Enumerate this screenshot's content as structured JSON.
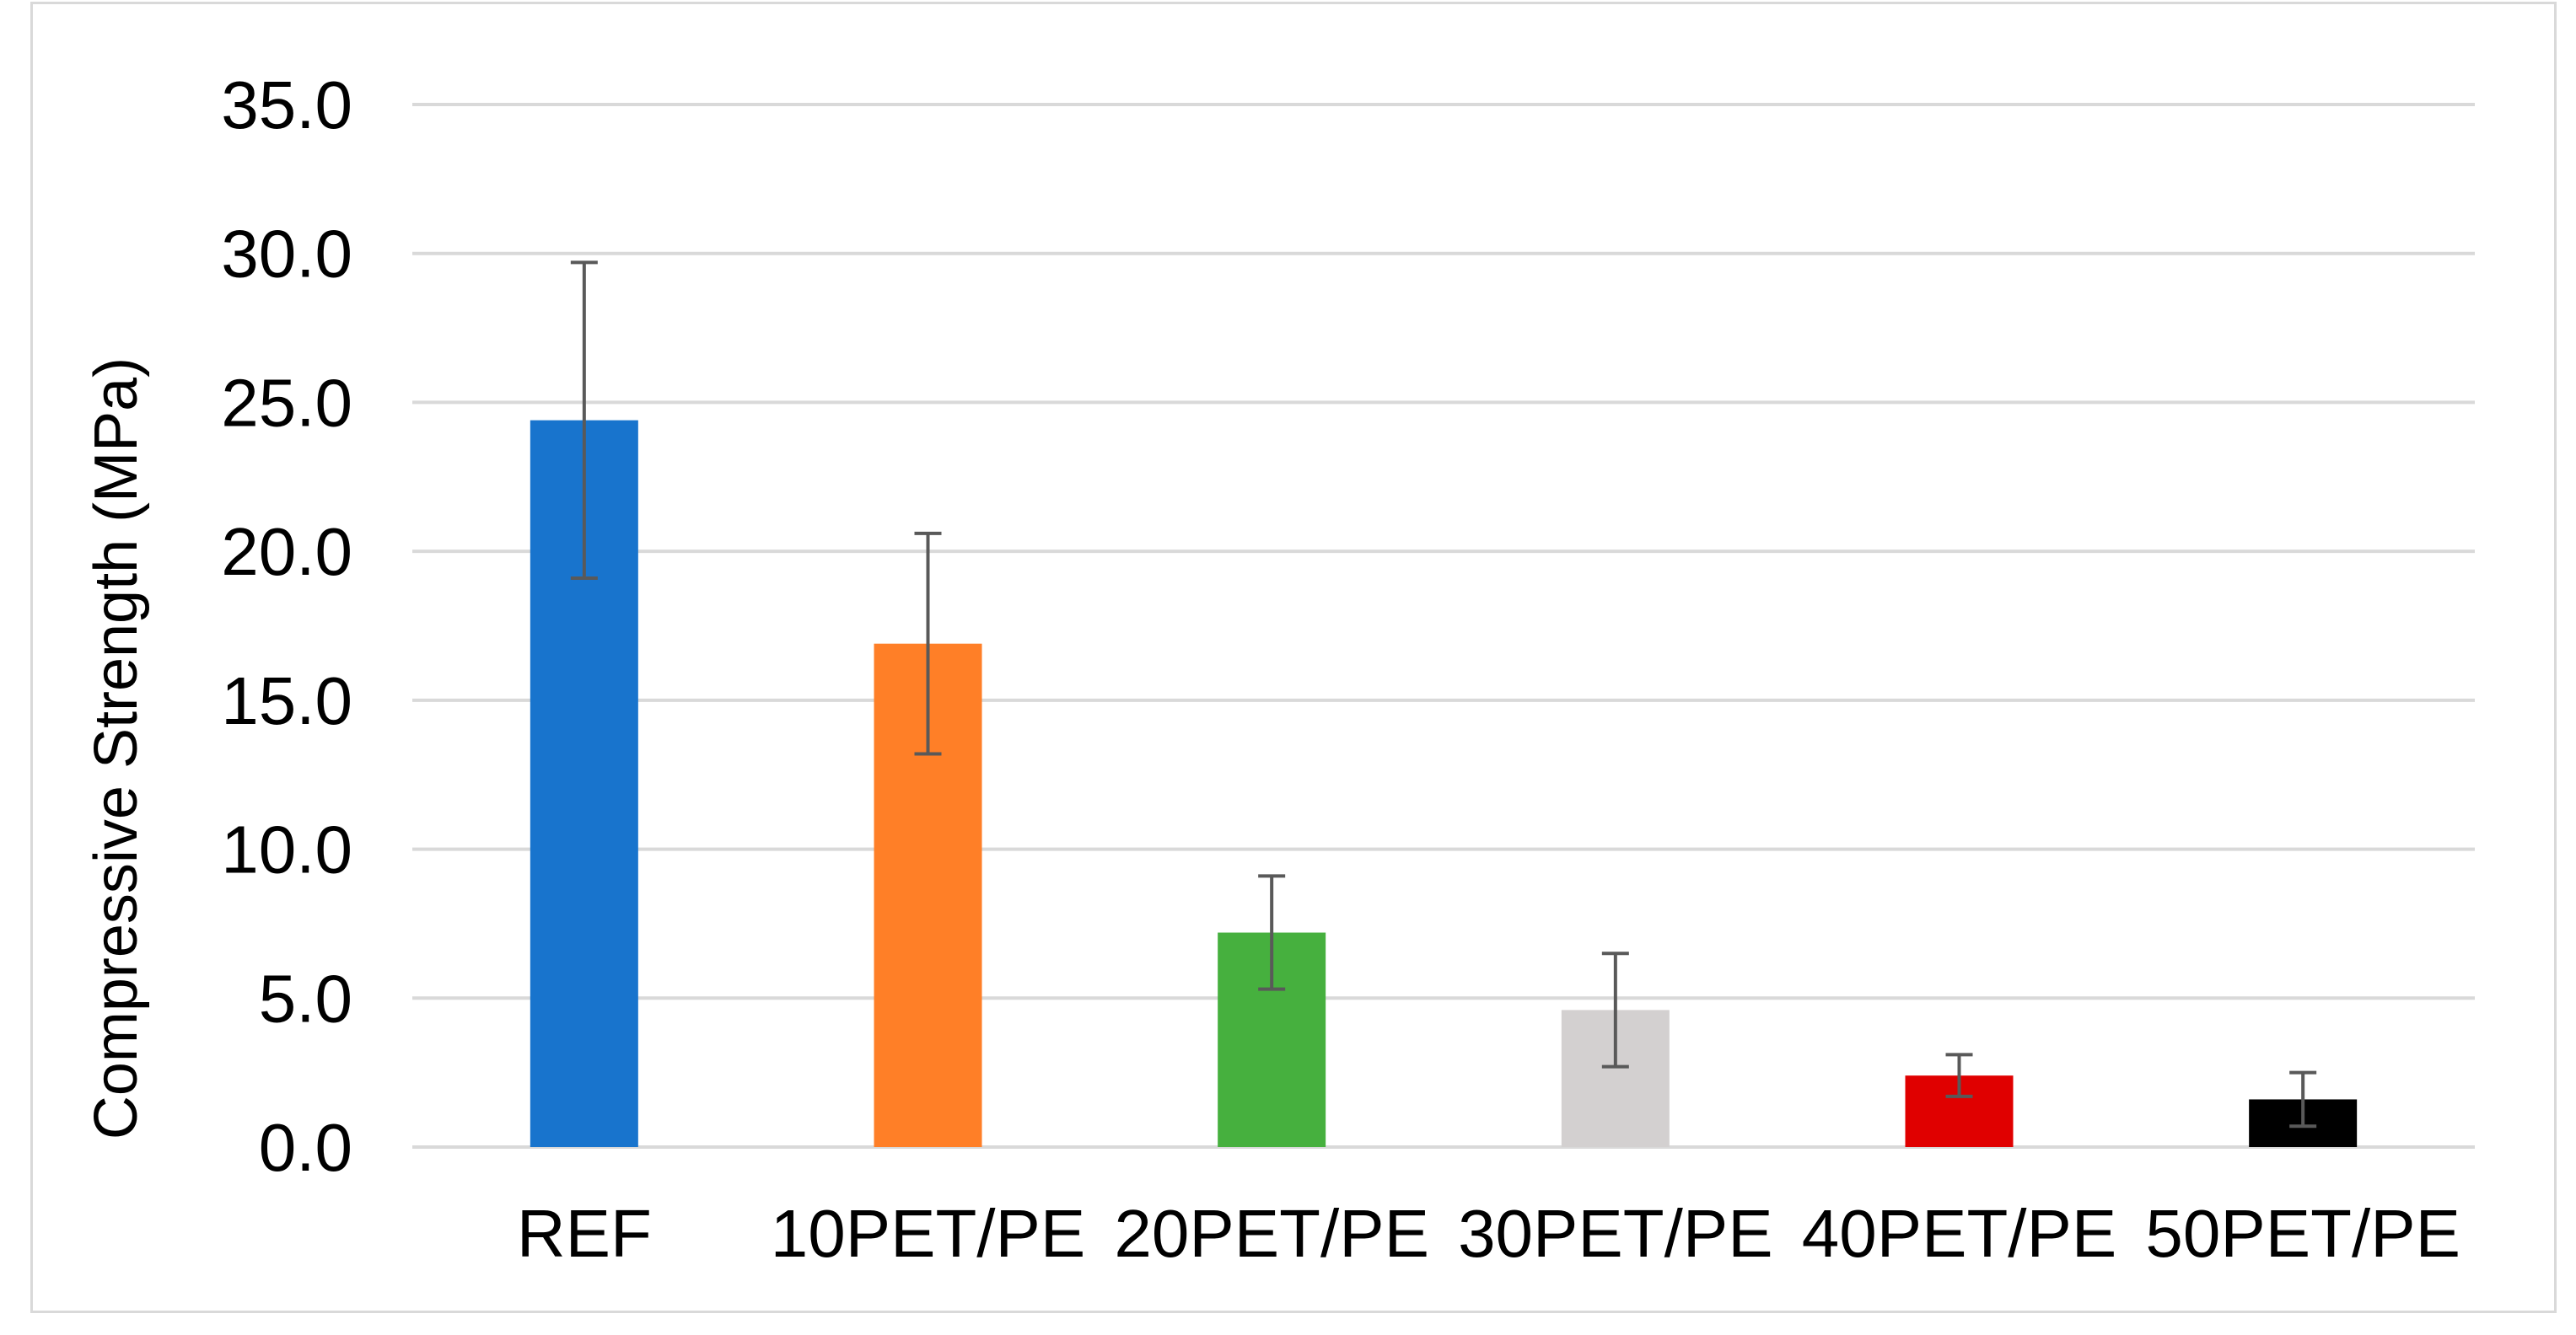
{
  "chart_data": {
    "type": "bar",
    "title": "",
    "xlabel": "",
    "ylabel": "Compressive Strength (MPa)",
    "ylim": [
      0,
      35
    ],
    "yticks": [
      "0.0",
      "5.0",
      "10.0",
      "15.0",
      "20.0",
      "25.0",
      "30.0",
      "35.0"
    ],
    "grid": true,
    "legend": "none",
    "categories": [
      "REF",
      "10PET/PE",
      "20PET/PE",
      "30PET/PE",
      "40PET/PE",
      "50PET/PE"
    ],
    "values": [
      24.4,
      16.9,
      7.2,
      4.6,
      2.4,
      1.6
    ],
    "error": [
      5.3,
      3.7,
      1.9,
      1.9,
      0.7,
      0.9
    ],
    "colors": [
      "#1874cd",
      "#ff7f27",
      "#46b03e",
      "#d3d0d0",
      "#e00000",
      "#000000"
    ]
  }
}
